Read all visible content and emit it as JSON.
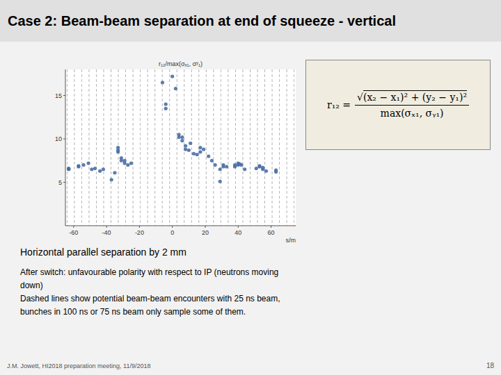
{
  "chart_data": {
    "type": "scatter",
    "title": "Case 2: Beam-beam separation at end of squeeze - vertical",
    "y_label": "r₁₂/max(σₓ₁, σʸ₁)",
    "x_label": "s/m",
    "color": "#4a6fa5",
    "marker": "circle",
    "grid": false,
    "xlim": [
      -65,
      75
    ],
    "ylim": [
      0,
      18
    ],
    "xticks": [
      -60,
      -40,
      -20,
      0,
      20,
      40,
      60
    ],
    "yticks": [
      5,
      10,
      15
    ],
    "x": [
      -63,
      -63,
      -63,
      -57,
      -57,
      -54,
      -51,
      -49,
      -47,
      -44,
      -42,
      -37,
      -35,
      -33,
      -33,
      -33,
      -31,
      -31,
      -29,
      -29,
      -27,
      -25,
      -6,
      -4,
      -4,
      0,
      2,
      4,
      4,
      6,
      6,
      8,
      8,
      10,
      11,
      13,
      15,
      17,
      17,
      19,
      22,
      24,
      26,
      29,
      29,
      31,
      31,
      33,
      38,
      38,
      40,
      40,
      41,
      42,
      44,
      51,
      53,
      53,
      55,
      55,
      57,
      63,
      63
    ],
    "values": [
      6.5,
      6.6,
      6.55,
      6.8,
      6.9,
      7.0,
      7.2,
      6.5,
      6.6,
      6.3,
      6.5,
      5.3,
      6.1,
      8.7,
      9.0,
      8.5,
      7.8,
      7.5,
      7.2,
      7.5,
      7.0,
      7.2,
      16.5,
      14.0,
      13.5,
      17.2,
      15.8,
      10.2,
      10.5,
      10.2,
      9.8,
      8.8,
      9.2,
      8.7,
      9.5,
      8.3,
      8.2,
      8.5,
      9.0,
      8.8,
      8.0,
      7.5,
      7.0,
      6.5,
      5.1,
      7.0,
      6.8,
      6.8,
      7.0,
      6.8,
      7.2,
      7.0,
      7.1,
      7.0,
      6.5,
      6.6,
      6.8,
      6.9,
      6.5,
      6.7,
      6.3,
      6.4,
      6.2
    ],
    "dashed_lines_x": [
      -64,
      -59.54838709677419,
      -55.09677419354839,
      -50.64516129032258,
      -46.193548387096776,
      -41.74193548387097,
      -37.29032258064516,
      -32.83870967741936,
      -28.387096774193548,
      -23.935483870967744,
      -19.483870967741936,
      -15.03225806451613,
      -10.580645161290322,
      -6.129032258064516,
      -1.6774193548387097,
      2.774193548387097,
      7.225806451612903,
      11.67741935483871,
      16.129032258064516,
      20.580645161290324,
      25.032258064516128,
      29.483870967741936,
      33.935483870967744,
      38.38709677419355,
      42.83870967741935,
      47.29032258064516,
      51.74193548387097,
      56.19354838709677,
      60.645161290322584,
      65.09677419354838,
      69.54838709677419,
      74
    ],
    "formula": {
      "lhs": "r₁₂ =",
      "radical": "√",
      "radicand": "(x₂ − x₁)² + (y₂ − y₁)²",
      "denominator": "max(σₓ₁, σᵧ₁)"
    },
    "annotations": [
      "Horizontal parallel separation by 2 mm",
      "After switch: unfavourable polarity with respect to IP (neutrons moving\ndown)\nDashed lines show potential beam-beam encounters with 25 ns beam,\nbunches in 100 ns or 75 ns beam only sample some of them."
    ],
    "footer": "J.M. Jowett, HI2018 preparation meeting, 11/9/2018",
    "footer_right": "18"
  }
}
